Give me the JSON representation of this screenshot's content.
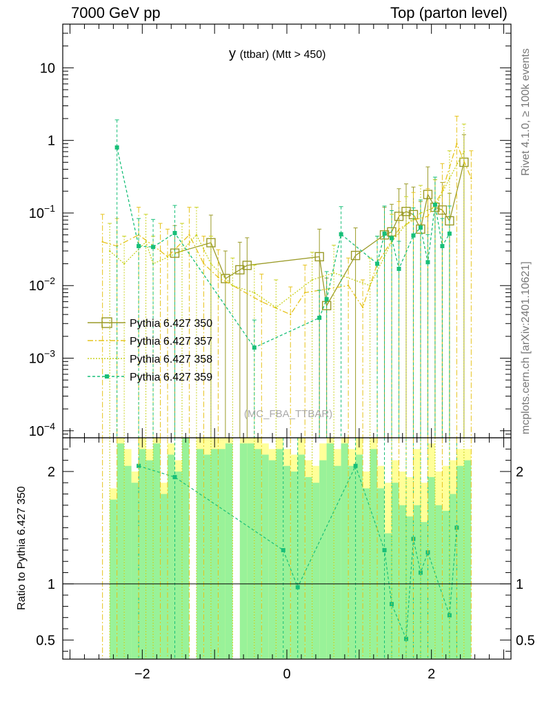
{
  "header": {
    "left": "7000 GeV pp",
    "right": "Top (parton level)"
  },
  "side_labels": {
    "rivet": "Rivet 4.1.0, ≥ 100k events",
    "mcplots": "mcplots.cern.ch [arXiv:2401.10621]"
  },
  "watermark": "(MC_FBA_TTBAR)",
  "colors": {
    "s350": "#9a9a26",
    "s357": "#e6c31a",
    "s358": "#c8d21e",
    "s359": "#17bf78",
    "band_yellow": "#ffff99",
    "band_green": "#99f299"
  },
  "chart_data": {
    "type": "line",
    "title_main": "y",
    "title_sub": "(ttbar) (Mtt > 450)",
    "xlabel": "",
    "ylabel_ratio": "Ratio to Pythia 6.427 350",
    "xlim": [
      -3.1,
      3.1
    ],
    "ylim_main": [
      8e-05,
      40
    ],
    "ylim_ratio": [
      0.33,
      2.3
    ],
    "yscale_main": "log",
    "x_ticks": [
      -2,
      0,
      2
    ],
    "x_tick_labels": [
      "−2",
      "0",
      "2"
    ],
    "main_y_tick_labels": [
      "10",
      "1",
      "10^-1",
      "10^-2",
      "10^-3",
      "10^-4"
    ],
    "ratio_y_ticks": [
      0.5,
      1,
      2
    ],
    "ratio_y_tick_labels": [
      "0.5",
      "1",
      "2"
    ],
    "legend_position": "middle-left",
    "series": [
      {
        "name": "Pythia 6.427 350",
        "style": "solid-square",
        "x": [
          -1.55,
          -1.05,
          -0.85,
          -0.65,
          -0.55,
          0.45,
          0.55,
          0.95,
          1.35,
          1.45,
          1.55,
          1.65,
          1.75,
          1.85,
          1.95,
          2.05,
          2.15,
          2.25,
          2.45
        ],
        "y": [
          0.028,
          0.039,
          0.0125,
          0.0165,
          0.019,
          0.025,
          0.0053,
          0.026,
          0.05,
          0.055,
          0.09,
          0.105,
          0.095,
          0.06,
          0.18,
          0.12,
          0.11,
          0.078,
          0.5
        ]
      },
      {
        "name": "Pythia 6.427 357",
        "style": "dashdot",
        "x": [
          -2.55,
          -2.35,
          -2.05,
          -1.75,
          -1.65,
          -1.35,
          -1.15,
          -0.95,
          -0.35,
          0.05,
          0.25,
          0.85,
          1.05,
          1.25,
          1.55,
          1.75,
          1.95,
          2.15,
          2.35,
          2.55
        ],
        "y": [
          0.04,
          0.035,
          0.05,
          0.03,
          0.025,
          0.05,
          0.02,
          0.013,
          0.006,
          0.004,
          0.008,
          0.01,
          0.005,
          0.02,
          0.06,
          0.08,
          0.09,
          0.2,
          0.9,
          0.3
        ]
      },
      {
        "name": "Pythia 6.427 358",
        "style": "dotted",
        "x": [
          -2.45,
          -2.25,
          -1.95,
          -1.85,
          -1.45,
          -1.25,
          -1.05,
          -0.75,
          -0.45,
          -0.15,
          0.35,
          0.65,
          1.15,
          1.45,
          1.65,
          1.85,
          2.05,
          2.25,
          2.45
        ],
        "y": [
          0.03,
          0.02,
          0.04,
          0.02,
          0.03,
          0.05,
          0.02,
          0.01,
          0.008,
          0.005,
          0.012,
          0.015,
          0.01,
          0.04,
          0.07,
          0.1,
          0.12,
          0.3,
          0.7
        ]
      },
      {
        "name": "Pythia 6.427 359",
        "style": "dashed-dot-marker",
        "x": [
          -2.35,
          -2.05,
          -1.85,
          -1.55,
          -0.45,
          0.45,
          0.55,
          0.75,
          1.25,
          1.35,
          1.45,
          1.55,
          1.75,
          1.85,
          1.95,
          2.05,
          2.15,
          2.25
        ],
        "y": [
          0.8,
          0.035,
          0.034,
          0.053,
          0.0014,
          0.0036,
          0.0065,
          0.051,
          0.02,
          0.052,
          0.045,
          0.017,
          0.049,
          0.063,
          0.021,
          0.13,
          0.035,
          0.052
        ]
      }
    ],
    "ratio_series": [
      {
        "name": "Pythia 6.427 359 / 350",
        "x": [
          -2.05,
          -1.55,
          -0.05,
          0.15,
          0.95,
          1.35,
          1.45,
          1.65,
          1.75,
          1.85,
          1.95,
          2.25,
          2.35
        ],
        "y": [
          2.05,
          1.95,
          1.3,
          0.97,
          2.05,
          1.3,
          0.82,
          0.51,
          1.4,
          1.1,
          1.28,
          0.72,
          1.5
        ]
      }
    ],
    "ratio_band_bins": {
      "x_edges": [
        -2.45,
        -2.35,
        -2.25,
        -2.15,
        -2.05,
        -1.95,
        -1.85,
        -1.75,
        -1.65,
        -1.55,
        -1.45,
        -1.35,
        -1.25,
        -1.15,
        -1.05,
        -0.95,
        -0.85,
        -0.75,
        -0.65,
        -0.55,
        -0.45,
        -0.35,
        -0.25,
        -0.15,
        -0.05,
        0.05,
        0.15,
        0.25,
        0.35,
        0.45,
        0.55,
        0.65,
        0.75,
        0.85,
        0.95,
        1.05,
        1.15,
        1.25,
        1.35,
        1.45,
        1.55,
        1.65,
        1.75,
        1.85,
        1.95,
        2.05,
        2.15,
        2.25,
        2.35,
        2.45,
        2.55
      ],
      "green_hi": [
        1.75,
        2.25,
        2.05,
        1.9,
        2.2,
        2.1,
        2.25,
        1.8,
        2.15,
        2.0,
        2.3,
        0,
        2.2,
        2.15,
        2.2,
        2.2,
        2.25,
        0,
        2.25,
        2.25,
        2.2,
        2.15,
        2.1,
        2.2,
        2.05,
        2.0,
        2.15,
        1.95,
        1.9,
        2.1,
        2.25,
        2.05,
        2.25,
        2.05,
        2.15,
        1.85,
        2.2,
        1.85,
        1.45,
        1.9,
        1.7,
        1.6,
        1.7,
        1.55,
        1.95,
        1.7,
        1.65,
        1.8,
        2.05,
        2.1
      ],
      "yellow_hi": [
        1.85,
        2.3,
        2.2,
        2.0,
        2.3,
        2.2,
        2.3,
        1.9,
        2.25,
        2.1,
        2.3,
        0,
        2.3,
        2.3,
        2.3,
        2.3,
        2.3,
        0,
        2.3,
        2.3,
        2.3,
        2.25,
        2.2,
        2.3,
        2.2,
        2.15,
        2.3,
        2.1,
        2.05,
        2.25,
        2.3,
        2.2,
        2.3,
        2.2,
        2.3,
        2.0,
        2.3,
        2.05,
        1.9,
        2.1,
        2.0,
        1.95,
        2.2,
        1.9,
        2.25,
        2.0,
        2.05,
        2.1,
        2.2,
        2.2
      ]
    }
  }
}
